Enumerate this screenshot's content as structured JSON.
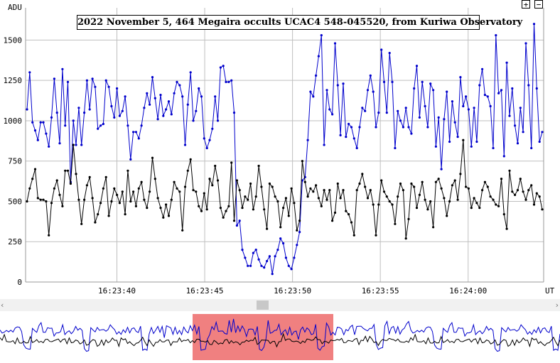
{
  "controls": {
    "zoom_in_label": "+",
    "zoom_out_label": "−",
    "scroll_left_label": "‹",
    "scroll_right_label": "›"
  },
  "colors": {
    "target": "#0000cc",
    "comparison": "#000000",
    "grid": "#bfbfbf",
    "overview_highlight": "#f08080"
  },
  "chart_data": {
    "type": "line",
    "title": "2022 November 5, 464 Megaira occults UCAC4 548-045520, from Kuriwa Observatory",
    "ylabel": "ADU",
    "xlabel": "UT",
    "ylim": [
      0,
      1700
    ],
    "y_ticks": [
      0,
      250,
      500,
      750,
      1000,
      1250,
      1500
    ],
    "x_ticks": [
      "16:23:40",
      "16:23:45",
      "16:23:50",
      "16:23:55",
      "16:24:00"
    ],
    "x_tick_seconds": [
      40,
      45,
      50,
      55,
      60
    ],
    "x_start_label": "16:23:34.8",
    "x_end_label": "16:24:04.3",
    "grid": true,
    "series": [
      {
        "color": "#0000cc",
        "values": [
          1070,
          1300,
          990,
          940,
          880,
          990,
          990,
          920,
          840,
          1020,
          1260,
          1050,
          860,
          1320,
          970,
          1240,
          620,
          1000,
          850,
          1080,
          850,
          1050,
          1250,
          1070,
          1260,
          1210,
          950,
          970,
          980,
          1250,
          1210,
          1090,
          1020,
          1200,
          1030,
          1060,
          1150,
          970,
          760,
          930,
          930,
          890,
          970,
          1080,
          1170,
          1100,
          1270,
          1140,
          1010,
          1160,
          1030,
          1070,
          1120,
          1040,
          1170,
          1240,
          1220,
          1150,
          850,
          1100,
          1300,
          1000,
          1060,
          1200,
          1150,
          890,
          830,
          880,
          950,
          1150,
          1000,
          1330,
          1340,
          1240,
          1240,
          1250,
          1050,
          350,
          380,
          200,
          150,
          100,
          100,
          180,
          200,
          140,
          100,
          90,
          130,
          160,
          50,
          160,
          200,
          270,
          240,
          150,
          100,
          80,
          150,
          230,
          310,
          630,
          650,
          880,
          1180,
          1150,
          1280,
          1400,
          1530,
          850,
          1190,
          1070,
          1040,
          1480,
          1220,
          910,
          1230,
          900,
          980,
          960,
          890,
          830,
          960,
          1080,
          1060,
          1190,
          1280,
          1180,
          960,
          1050,
          1440,
          1240,
          1050,
          1420,
          1240,
          830,
          1060,
          1000,
          960,
          1080,
          960,
          920,
          1200,
          1340,
          1020,
          1240,
          1090,
          960,
          1230,
          1190,
          840,
          1020,
          700,
          1010,
          1180,
          870,
          1120,
          990,
          900,
          1270,
          1090,
          1150,
          1070,
          840,
          1080,
          870,
          1220,
          1320,
          1160,
          1150,
          1090,
          830,
          1530,
          1170,
          1190,
          780,
          1360,
          1030,
          1200,
          970,
          860,
          1080,
          930,
          1480,
          1220,
          830,
          1600,
          1200,
          870,
          930
        ],
        "values_note": ""
      },
      {
        "color": "#000000",
        "values": [
          500,
          580,
          640,
          700,
          520,
          510,
          510,
          500,
          290,
          490,
          580,
          630,
          540,
          470,
          690,
          690,
          610,
          850,
          670,
          510,
          360,
          510,
          600,
          650,
          520,
          370,
          420,
          490,
          580,
          650,
          410,
          500,
          580,
          540,
          490,
          560,
          420,
          690,
          500,
          560,
          470,
          580,
          620,
          510,
          460,
          560,
          770,
          640,
          520,
          460,
          400,
          480,
          410,
          510,
          620,
          580,
          560,
          320,
          590,
          690,
          760,
          570,
          560,
          470,
          440,
          550,
          450,
          640,
          600,
          720,
          630,
          460,
          400,
          440,
          470,
          740,
          380,
          630,
          570,
          460,
          530,
          510,
          610,
          450,
          530,
          720,
          590,
          450,
          330,
          610,
          590,
          530,
          500,
          340,
          460,
          520,
          410,
          580,
          490,
          320,
          380,
          750,
          620,
          530,
          580,
          560,
          600,
          520,
          470,
          570,
          510,
          570,
          380,
          430,
          610,
          520,
          570,
          440,
          420,
          370,
          290,
          570,
          610,
          670,
          590,
          520,
          570,
          480,
          290,
          480,
          630,
          560,
          530,
          500,
          480,
          360,
          530,
          610,
          570,
          270,
          390,
          610,
          590,
          460,
          540,
          620,
          510,
          450,
          500,
          340,
          620,
          640,
          580,
          520,
          410,
          500,
          600,
          630,
          510,
          670,
          880,
          590,
          580,
          460,
          520,
          490,
          460,
          570,
          620,
          590,
          530,
          510,
          480,
          470,
          640,
          420,
          330,
          690,
          560,
          540,
          570,
          640,
          560,
          510,
          570,
          600,
          480,
          550,
          530,
          450
        ],
        "values_note": ""
      }
    ]
  }
}
